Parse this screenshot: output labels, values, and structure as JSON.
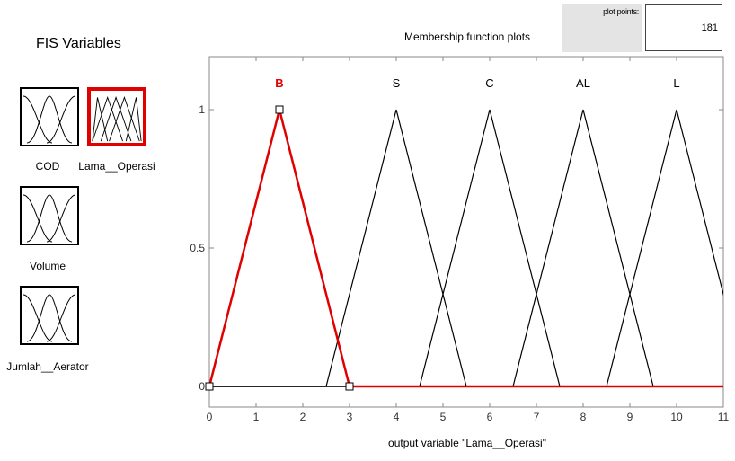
{
  "fis_panel": {
    "title": "FIS Variables",
    "variables": [
      {
        "name": "COD",
        "kind": "input",
        "selected": false,
        "icon": "membership-curves-icon"
      },
      {
        "name": "Lama__Operasi",
        "kind": "output",
        "selected": true,
        "icon": "membership-curves-icon"
      },
      {
        "name": "Volume",
        "kind": "input",
        "selected": false,
        "icon": "membership-curves-icon"
      },
      {
        "name": "Jumlah__Aerator",
        "kind": "input",
        "selected": false,
        "icon": "membership-curves-icon"
      }
    ]
  },
  "plot": {
    "title": "Membership function plots",
    "plot_points_label": "plot points:",
    "plot_points_value": "181",
    "xlabel": "output variable \"Lama__Operasi\"",
    "selected_color": "#e00000",
    "line_color": "#000000"
  },
  "chart_data": {
    "type": "line",
    "xlim": [
      0,
      11
    ],
    "ylim": [
      0,
      1
    ],
    "x_ticks": [
      0,
      1,
      2,
      3,
      4,
      5,
      6,
      7,
      8,
      9,
      10,
      11
    ],
    "y_ticks": [
      0,
      0.5,
      1
    ],
    "y_tick_labels": [
      "0",
      "0.5",
      "1"
    ],
    "series": [
      {
        "name": "B",
        "shape": "trimf",
        "params": [
          0,
          1.5,
          3
        ],
        "selected": true
      },
      {
        "name": "S",
        "shape": "trimf",
        "params": [
          2.5,
          4,
          5.5
        ],
        "selected": false
      },
      {
        "name": "C",
        "shape": "trimf",
        "params": [
          4.5,
          6,
          7.5
        ],
        "selected": false
      },
      {
        "name": "AL",
        "shape": "trimf",
        "params": [
          6.5,
          8,
          9.5
        ],
        "selected": false
      },
      {
        "name": "L",
        "shape": "trimf",
        "params": [
          8.5,
          10,
          11.5
        ],
        "selected": false
      }
    ]
  }
}
